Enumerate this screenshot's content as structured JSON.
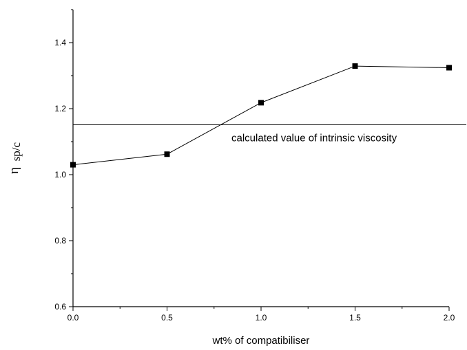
{
  "chart_data": {
    "type": "line",
    "xlabel": "wt% of compatibiliser",
    "ylabel": {
      "symbol": "η",
      "subscript": "sp/c"
    },
    "xlim": [
      0.0,
      2.0
    ],
    "ylim": [
      0.6,
      1.5
    ],
    "x_ticks": [
      0.0,
      0.5,
      1.0,
      1.5,
      2.0
    ],
    "x_tick_labels": [
      "0.0",
      "0.5",
      "1.0",
      "1.5",
      "2.0"
    ],
    "y_ticks": [
      0.6,
      0.8,
      1.0,
      1.2,
      1.4
    ],
    "y_tick_labels": [
      "0.6",
      "0.8",
      "1.0",
      "1.2",
      "1.4"
    ],
    "series": [
      {
        "x": [
          0.0,
          0.5,
          1.0,
          1.5,
          2.0
        ],
        "values": [
          1.03,
          1.062,
          1.218,
          1.329,
          1.324
        ]
      }
    ],
    "reference_line": {
      "y": 1.151,
      "label": "calculated value of intrinsic viscosity"
    },
    "marker": "square",
    "grid": false,
    "colors": {
      "line": "#000000",
      "marker": "#000000"
    }
  }
}
